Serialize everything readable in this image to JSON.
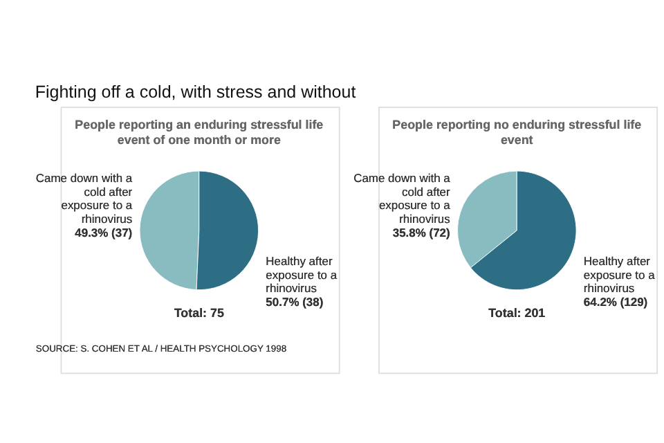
{
  "chart_data": [
    {
      "type": "pie",
      "title": "Fighting off a cold, with stress and without",
      "subtitle": "People reporting an enduring stressful life event of one month or more",
      "categories": [
        "Came down with a cold after exposure to a rhinovirus",
        "Healthy after exposure to a rhinovirus"
      ],
      "values": [
        49.3,
        50.7
      ],
      "colors": [
        "#88bcc0",
        "#2e6e84"
      ],
      "value_labels": [
        "49.3% (37)",
        "50.7% (38)"
      ],
      "annotations": [
        "Total: 75",
        "SOURCE: S. COHEN ET AL / HEALTH PSYCHOLOGY 1998"
      ],
      "legend": false
    },
    {
      "type": "pie",
      "subtitle": "People reporting no enduring stressful life event",
      "categories": [
        "Came down with a cold after exposure to a rhinovirus",
        "Healthy after exposure to a rhinovirus"
      ],
      "values": [
        35.8,
        64.2
      ],
      "colors": [
        "#88bcc0",
        "#2e6e84"
      ],
      "value_labels": [
        "35.8% (72)",
        "64.2% (129)"
      ],
      "annotations": [
        "Total: 201"
      ],
      "legend": false
    }
  ]
}
